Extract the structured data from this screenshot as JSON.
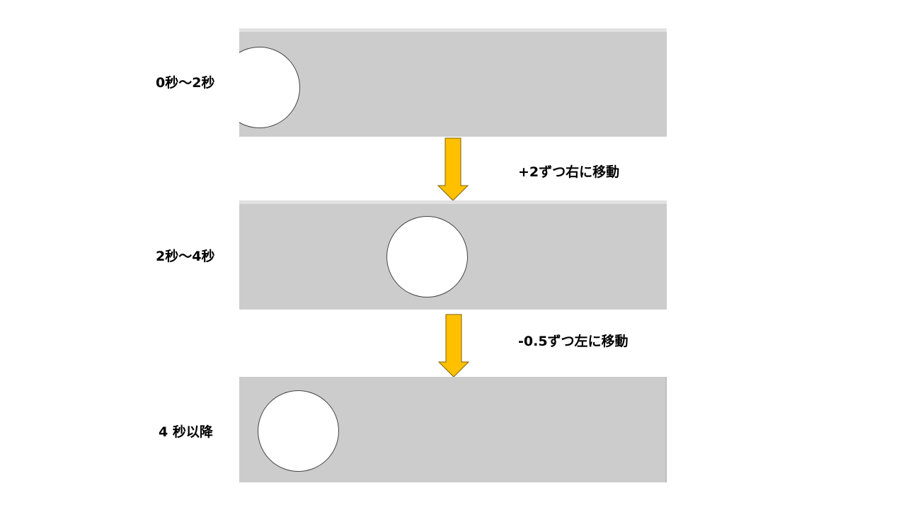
{
  "stages": [
    {
      "label": "0秒〜2秒"
    },
    {
      "label": "2秒〜4秒"
    },
    {
      "label": "4 秒以降"
    }
  ],
  "transitions": [
    {
      "label": "+2ずつ右に移動"
    },
    {
      "label": "-0.5ずつ左に移動"
    }
  ],
  "colors": {
    "panel": "#cccccc",
    "circle_fill": "#ffffff",
    "circle_stroke": "#444444",
    "arrow_fill": "#ffc000",
    "arrow_stroke": "#7f6000"
  }
}
